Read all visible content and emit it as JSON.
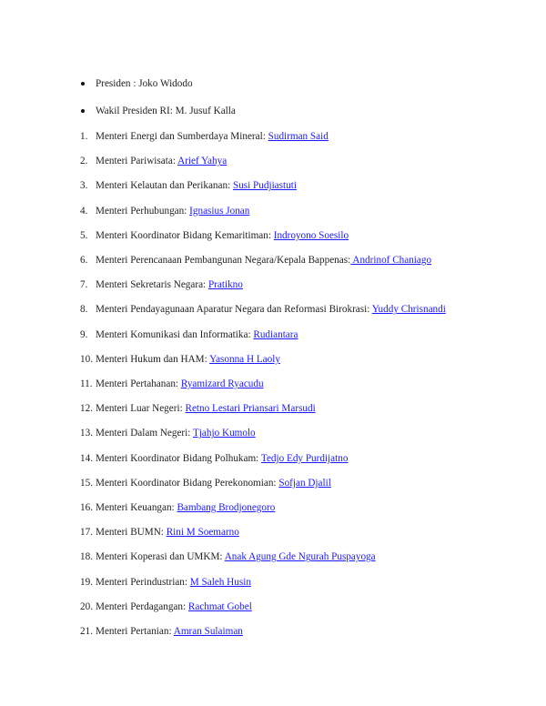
{
  "bullets": [
    {
      "text": "Presiden : Joko Widodo"
    },
    {
      "text": "Wakil Presiden RI: M. Jusuf Kalla"
    }
  ],
  "ministers": [
    {
      "number": "1.",
      "title": "Menteri Energi dan Sumberdaya Mineral: ",
      "name": "Sudirman Said"
    },
    {
      "number": "2.",
      "title": "Menteri Pariwisata: ",
      "name": "Arief Yahya"
    },
    {
      "number": "3.",
      "title": "Menteri Kelautan dan Perikanan: ",
      "name": "Susi Pudjiastuti"
    },
    {
      "number": "4.",
      "title": "Menteri Perhubungan: ",
      "name": "Ignasius Jonan"
    },
    {
      "number": "5.",
      "title": "Menteri Koordinator Bidang Kemaritiman: ",
      "name": "Indroyono Soesilo"
    },
    {
      "number": "6.",
      "title": "Menteri Perencanaan Pembangunan Negara/Kepala Bappenas:",
      "name": " Andrinof Chaniago"
    },
    {
      "number": "7.",
      "title": "Menteri Sekretaris Negara: ",
      "name": "Pratikno"
    },
    {
      "number": "8.",
      "title": "Menteri Pendayagunaan Aparatur Negara dan Reformasi Birokrasi: ",
      "name": "Yuddy Chrisnandi"
    },
    {
      "number": "9.",
      "title": "Menteri Komunikasi dan Informatika: ",
      "name": "Rudiantara"
    },
    {
      "number": "10.",
      "title": "Menteri Hukum dan HAM: ",
      "name": "Yasonna H Laoly"
    },
    {
      "number": "11.",
      "title": "Menteri Pertahanan: ",
      "name": "Ryamizard Ryacudu"
    },
    {
      "number": "12.",
      "title": "Menteri Luar Negeri: ",
      "name": "Retno Lestari Priansari Marsudi"
    },
    {
      "number": "13.",
      "title": "Menteri Dalam Negeri: ",
      "name": "Tjahjo Kumolo"
    },
    {
      "number": "14.",
      "title": "Menteri Koordinator Bidang Polhukam: ",
      "name": "Tedjo Edy Purdijatno"
    },
    {
      "number": "15.",
      "title": "Menteri Koordinator Bidang Perekonomian: ",
      "name": "Sofjan Djalil"
    },
    {
      "number": "16.",
      "title": "Menteri Keuangan: ",
      "name": "Bambang Brodjonegoro"
    },
    {
      "number": "17.",
      "title": "Menteri BUMN: ",
      "name": "Rini M Soemarno"
    },
    {
      "number": "18.",
      "title": "Menteri Koperasi dan UMKM: ",
      "name": "Anak Agung Gde Ngurah Puspayoga"
    },
    {
      "number": "19.",
      "title": "Menteri Perindustrian: ",
      "name": "M Saleh Husin"
    },
    {
      "number": "20.",
      "title": "Menteri Perdagangan: ",
      "name": "Rachmat Gobel"
    },
    {
      "number": "21.",
      "title": "Menteri Pertanian: ",
      "name": "Amran Sulaiman"
    }
  ],
  "colors": {
    "link": "#1a1aff",
    "text": "#222222"
  }
}
